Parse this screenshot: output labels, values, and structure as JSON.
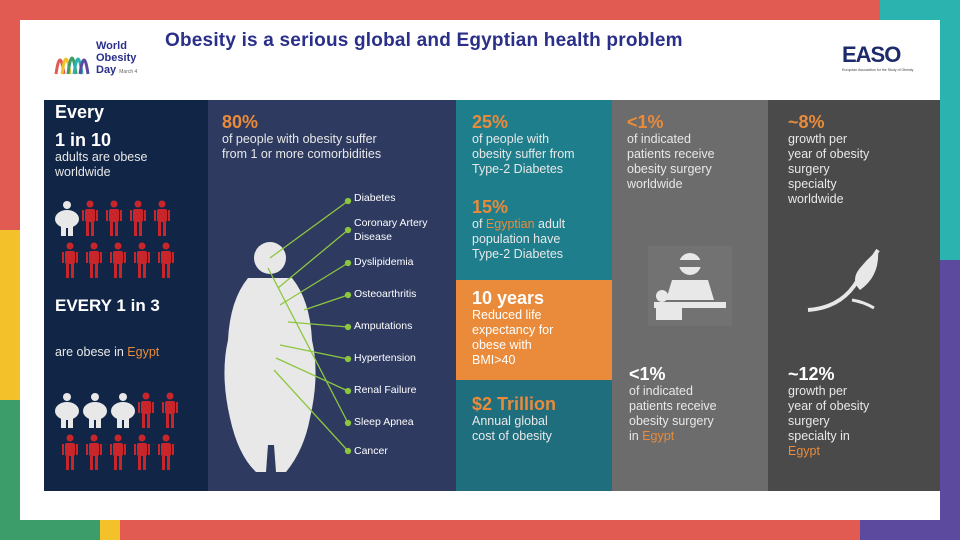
{
  "title": "Obesity is a serious global and Egyptian health problem",
  "logo_wod": {
    "line1": "World",
    "line2": "Obesity",
    "line3": "Day",
    "small": "March 4"
  },
  "logo_easo": {
    "word": "EASO",
    "sub": "European Association for the Study of Obesity"
  },
  "panel1": {
    "every": "Every",
    "ratio": "1 in 10",
    "desc_line1": "adults are  obese",
    "desc_line2": "worldwide",
    "every3": "EVERY 1 in 3",
    "egypt_prefix": "are  obese in ",
    "egypt_word": "Egypt"
  },
  "panel2": {
    "pct": "80%",
    "desc_line1": "of people with obesity suffer",
    "desc_line2": "from 1 or more comorbidities",
    "conditions": [
      "Diabetes",
      "Coronary Artery",
      "Disease",
      "Dyslipidemia",
      "Osteoarthritis",
      "Amputations",
      "Hypertension",
      "Renal Failure",
      "Sleep Apnea",
      "Cancer"
    ]
  },
  "panel3": {
    "pct1": "25%",
    "desc1": [
      "of people with",
      "obesity suffer from",
      "Type-2 Diabetes"
    ],
    "pct2": "15%",
    "desc2_prefix": "of ",
    "desc2_orange": "Egyptian",
    "desc2_suffix": " adult",
    "desc2_rest": [
      "population have",
      "Type-2 Diabetes"
    ],
    "years": "10 years",
    "years_desc": [
      "Reduced life",
      "expectancy for",
      "obese with",
      "BMI>40"
    ],
    "trillion": "$2 Trillion",
    "trillion_desc": [
      "Annual global",
      "cost of obesity"
    ]
  },
  "panel4": {
    "pct1": "<1%",
    "desc1": [
      "of indicated",
      "patients receive",
      "obesity surgery",
      "worldwide"
    ],
    "pct2": "<1%",
    "desc2": [
      "of indicated",
      "patients receive",
      "obesity surgery"
    ],
    "desc2_in": "in ",
    "desc2_egypt": "Egypt"
  },
  "panel5": {
    "pct1": "~8%",
    "desc1": [
      "growth per",
      "year of obesity",
      "surgery",
      "specialty",
      "worldwide"
    ],
    "pct2": "~12%",
    "desc2": [
      "growth per",
      "year of obesity",
      "surgery",
      "specialty in"
    ],
    "desc2_egypt": "Egypt"
  },
  "colors": {
    "navy": "#112546",
    "slate": "#2e3a60",
    "teal": "#1f7e8c",
    "orange": "#e98b3a",
    "grey": "#6c6c6c",
    "dark": "#4a4a4a",
    "red_person": "#c8262b",
    "green_line": "#8cc63f"
  }
}
